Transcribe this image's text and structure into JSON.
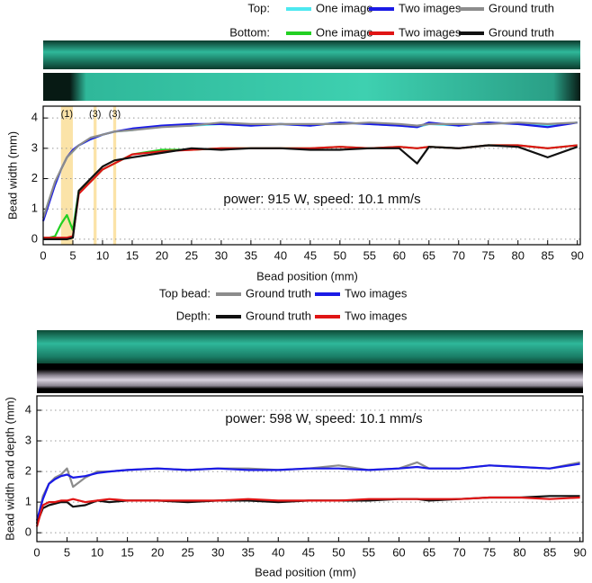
{
  "chart_data": [
    {
      "type": "line",
      "legend_groups": [
        "Top:",
        "Bottom:"
      ],
      "annotation": "power: 915 W, speed: 10.1 mm/s",
      "regions": [
        {
          "label": "(1)",
          "x": [
            3,
            5
          ]
        },
        {
          "label": "(3)",
          "x": [
            8.5,
            9
          ]
        },
        {
          "label": "(3)",
          "x": [
            11.8,
            12.3
          ]
        }
      ],
      "region_color": "#fbe3a8",
      "xlabel": "Bead position (mm)",
      "ylabel": "Bead width (mm)",
      "x": [
        0,
        1,
        2,
        3,
        4,
        5,
        6,
        8,
        10,
        12,
        15,
        20,
        25,
        30,
        35,
        40,
        45,
        50,
        55,
        60,
        63,
        65,
        70,
        75,
        80,
        85,
        90
      ],
      "series": [
        {
          "name": "One image",
          "color": "#4de8f0",
          "values": [
            0.7,
            1.3,
            1.8,
            2.3,
            2.7,
            2.9,
            3.1,
            3.3,
            3.45,
            3.55,
            3.6,
            3.75,
            3.75,
            3.8,
            3.75,
            3.8,
            3.75,
            3.85,
            3.8,
            3.75,
            3.7,
            3.8,
            3.75,
            3.85,
            3.8,
            3.75,
            3.85
          ]
        },
        {
          "name": "Two images",
          "color": "#1a1ae6",
          "values": [
            0.6,
            1.2,
            1.8,
            2.3,
            2.7,
            2.95,
            3.1,
            3.3,
            3.45,
            3.55,
            3.65,
            3.75,
            3.8,
            3.8,
            3.75,
            3.8,
            3.75,
            3.85,
            3.8,
            3.75,
            3.7,
            3.85,
            3.75,
            3.85,
            3.8,
            3.7,
            3.85
          ]
        },
        {
          "name": "Ground truth",
          "color": "#8c8c8c",
          "values": [
            0.7,
            1.3,
            1.9,
            2.3,
            2.7,
            2.9,
            3.1,
            3.35,
            3.45,
            3.55,
            3.6,
            3.7,
            3.75,
            3.85,
            3.8,
            3.8,
            3.8,
            3.8,
            3.85,
            3.8,
            3.75,
            3.8,
            3.8,
            3.8,
            3.85,
            3.8,
            3.85
          ]
        },
        {
          "name": "One image",
          "color": "#22d022",
          "values": [
            0.05,
            0.05,
            0.1,
            0.5,
            0.8,
            0.3,
            1.6,
            1.9,
            2.3,
            2.5,
            2.8,
            2.95,
            2.95,
            3.0,
            3.0,
            3.0,
            3.0,
            3.05,
            3.0,
            3.05,
            3.0,
            3.05,
            3.0,
            3.1,
            3.1,
            3.0,
            3.1
          ]
        },
        {
          "name": "Two images",
          "color": "#e01515",
          "values": [
            0.05,
            0.05,
            0.05,
            0.05,
            0.05,
            0.1,
            1.5,
            1.9,
            2.3,
            2.5,
            2.8,
            2.9,
            2.95,
            3.0,
            3.0,
            3.0,
            3.0,
            3.05,
            3.0,
            3.05,
            3.0,
            3.05,
            3.0,
            3.1,
            3.1,
            3.0,
            3.1
          ]
        },
        {
          "name": "Ground truth",
          "color": "#111111",
          "values": [
            0,
            0,
            0,
            0,
            0,
            0.05,
            1.6,
            2.0,
            2.4,
            2.6,
            2.7,
            2.85,
            3.0,
            2.95,
            3.0,
            3.0,
            2.95,
            2.95,
            3.0,
            3.0,
            2.5,
            3.05,
            3.0,
            3.1,
            3.05,
            2.7,
            3.05
          ]
        }
      ],
      "xlim": [
        0,
        90.5
      ],
      "ylim": [
        -0.18,
        4.39
      ],
      "xticks": [
        0,
        5,
        10,
        15,
        20,
        25,
        30,
        35,
        40,
        45,
        50,
        55,
        60,
        65,
        70,
        75,
        80,
        85,
        90
      ],
      "yticks": [
        0,
        1,
        2,
        3,
        4
      ],
      "grid": true
    },
    {
      "type": "line",
      "legend_groups": [
        "Top bead:",
        "Depth:"
      ],
      "annotation": "power: 598 W, speed: 10.1 mm/s",
      "xlabel": "Bead position (mm)",
      "ylabel": "Bead width and depth (mm)",
      "x": [
        0,
        1,
        2,
        3,
        4,
        5,
        6,
        8,
        10,
        12,
        15,
        20,
        25,
        30,
        35,
        40,
        45,
        50,
        55,
        60,
        63,
        65,
        70,
        75,
        80,
        85,
        90
      ],
      "series": [
        {
          "name": "Ground truth",
          "color": "#8c8c8c",
          "values": [
            0.3,
            1.2,
            1.6,
            1.8,
            1.9,
            2.1,
            1.5,
            1.8,
            2.0,
            2.0,
            2.05,
            2.1,
            2.05,
            2.1,
            2.1,
            2.05,
            2.1,
            2.2,
            2.05,
            2.1,
            2.3,
            2.1,
            2.1,
            2.2,
            2.15,
            2.1,
            2.3
          ]
        },
        {
          "name": "Two images",
          "color": "#1a1ae6",
          "values": [
            0.4,
            1.1,
            1.6,
            1.75,
            1.85,
            1.9,
            1.8,
            1.85,
            1.95,
            2.0,
            2.05,
            2.1,
            2.05,
            2.1,
            2.05,
            2.05,
            2.1,
            2.1,
            2.05,
            2.1,
            2.15,
            2.1,
            2.1,
            2.2,
            2.15,
            2.1,
            2.25
          ]
        },
        {
          "name": "Ground truth",
          "color": "#111111",
          "values": [
            0.3,
            0.8,
            0.9,
            0.95,
            1.0,
            1.0,
            0.85,
            0.9,
            1.05,
            1.0,
            1.05,
            1.05,
            1.0,
            1.05,
            1.05,
            1.0,
            1.05,
            1.05,
            1.05,
            1.1,
            1.1,
            1.05,
            1.1,
            1.15,
            1.15,
            1.2,
            1.2
          ]
        },
        {
          "name": "Two images",
          "color": "#e01515",
          "values": [
            0.2,
            0.9,
            1.0,
            1.0,
            1.05,
            1.05,
            1.1,
            1.0,
            1.05,
            1.1,
            1.05,
            1.05,
            1.05,
            1.05,
            1.1,
            1.05,
            1.05,
            1.05,
            1.1,
            1.1,
            1.1,
            1.1,
            1.1,
            1.15,
            1.15,
            1.1,
            1.15
          ]
        }
      ],
      "xlim": [
        0,
        90.5
      ],
      "ylim": [
        -0.29,
        4.47
      ],
      "xticks": [
        0,
        5,
        10,
        15,
        20,
        25,
        30,
        35,
        40,
        45,
        50,
        55,
        60,
        65,
        70,
        75,
        80,
        85,
        90
      ],
      "yticks": [
        0,
        1,
        2,
        3,
        4
      ],
      "grid": true
    }
  ]
}
